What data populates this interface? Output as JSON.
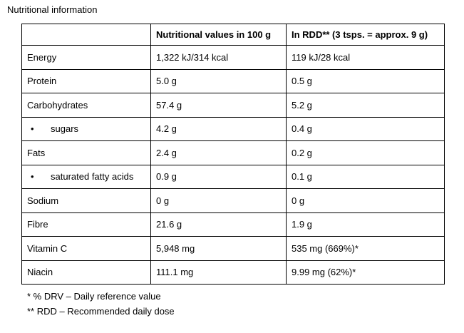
{
  "title": "Nutritional information",
  "table": {
    "header": [
      "Nutritional values in 100 g",
      "In RDD** (3 tsps. = approx. 9 g)"
    ],
    "rows": [
      {
        "cells": [
          "Energy",
          "1,322 kJ/314 kcal",
          "119 kJ/28 kcal"
        ]
      },
      {
        "cells": [
          "Protein",
          "5.0 g",
          "0.5 g"
        ]
      },
      {
        "cells": [
          "Carbohydrates",
          "57.4 g",
          "5.2 g"
        ]
      },
      {
        "cells": [
          "sugars",
          "4.2 g",
          "0.4 g"
        ],
        "bullet": true
      },
      {
        "cells": [
          "Fats",
          "2.4 g",
          "0.2 g"
        ]
      },
      {
        "cells": [
          "saturated fatty acids",
          "0.9 g",
          "0.1 g"
        ],
        "bullet": true
      },
      {
        "cells": [
          "Sodium",
          "0 g",
          "0 g"
        ]
      },
      {
        "cells": [
          "Fibre",
          "21.6 g",
          "1.9 g"
        ]
      },
      {
        "cells": [
          "Vitamin C",
          "5,948 mg",
          "535 mg (669%)*"
        ]
      },
      {
        "cells": [
          "Niacin",
          "111.1 mg",
          "9.99 mg (62%)*"
        ]
      }
    ]
  },
  "footnotes": [
    "* % DRV – Daily reference value",
    "** RDD – Recommended daily dose"
  ]
}
